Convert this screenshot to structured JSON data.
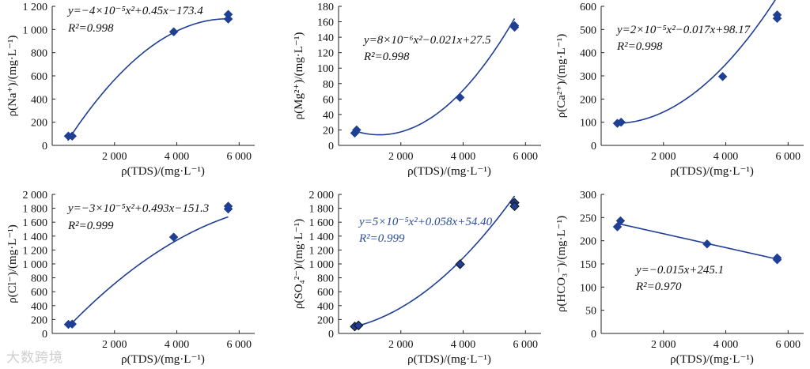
{
  "watermark": "大数跨境",
  "colors": {
    "series": "#1f3f94",
    "eq_blue": "#2b4f9a",
    "eq_black": "#111111"
  },
  "chart_data": [
    {
      "type": "scatter",
      "ylabel": "ρ(Na⁺)/(mg·L⁻¹)",
      "xlabel": "ρ(TDS)/(mg·L⁻¹)",
      "xlim": [
        0,
        6500
      ],
      "ylim": [
        0,
        1200
      ],
      "xticks": [
        2000,
        4000,
        6000
      ],
      "yticks": [
        0,
        200,
        400,
        600,
        800,
        1000,
        1200
      ],
      "xtick_labels": [
        "2 000",
        "4 000",
        "6 000"
      ],
      "ytick_labels": [
        "0",
        "200",
        "400",
        "600",
        "800",
        "1 000",
        "1 200"
      ],
      "points": [
        [
          520,
          80
        ],
        [
          640,
          80
        ],
        [
          3900,
          980
        ],
        [
          5650,
          1130
        ],
        [
          5650,
          1090
        ]
      ],
      "fit": {
        "kind": "quadratic",
        "a": -4e-05,
        "b": 0.45,
        "c": -173.4,
        "range": [
          500,
          5700
        ]
      },
      "equation": "y=−4×10⁻⁵x²+0.45x−173.4",
      "r2": "R²=0.998"
    },
    {
      "type": "scatter",
      "ylabel": "ρ(Mg²⁺)/(mg·L⁻¹)",
      "xlabel": "ρ(TDS)/(mg·L⁻¹)",
      "xlim": [
        0,
        6500
      ],
      "ylim": [
        0,
        180
      ],
      "xticks": [
        2000,
        4000,
        6000
      ],
      "yticks": [
        0,
        20,
        40,
        60,
        80,
        100,
        120,
        140,
        160,
        180
      ],
      "xtick_labels": [
        "2 000",
        "4 000",
        "6 000"
      ],
      "ytick_labels": [
        "0",
        "20",
        "40",
        "60",
        "80",
        "100",
        "120",
        "140",
        "160",
        "180"
      ],
      "points": [
        [
          520,
          16
        ],
        [
          580,
          20
        ],
        [
          3900,
          62
        ],
        [
          5650,
          155
        ],
        [
          5650,
          153
        ]
      ],
      "fit": {
        "kind": "quadratic",
        "a": 8e-06,
        "b": -0.021,
        "c": 27.5,
        "range": [
          500,
          5650
        ]
      },
      "equation": "y=8×10⁻⁶x²−0.021x+27.5",
      "r2": "R²=0.998"
    },
    {
      "type": "scatter",
      "ylabel": "ρ(Ca²⁺)/(mg·L⁻¹)",
      "xlabel": "ρ(TDS)/(mg·L⁻¹)",
      "xlim": [
        0,
        6500
      ],
      "ylim": [
        0,
        600
      ],
      "xticks": [
        2000,
        4000,
        6000
      ],
      "yticks": [
        0,
        100,
        200,
        300,
        400,
        500,
        600
      ],
      "xtick_labels": [
        "2 000",
        "4 000",
        "6 000"
      ],
      "ytick_labels": [
        "0",
        "100",
        "200",
        "300",
        "400",
        "500",
        "600"
      ],
      "points": [
        [
          520,
          95
        ],
        [
          640,
          100
        ],
        [
          3900,
          297
        ],
        [
          5650,
          563
        ],
        [
          5650,
          548
        ]
      ],
      "fit": {
        "kind": "quadratic",
        "a": 2e-05,
        "b": -0.017,
        "c": 98.17,
        "range": [
          500,
          5650
        ]
      },
      "equation": "y=2×10⁻⁵x²−0.017x+98.17",
      "r2": "R²=0.998"
    },
    {
      "type": "scatter",
      "ylabel": "ρ(Cl⁻)/(mg·L⁻¹)",
      "xlabel": "ρ(TDS)/(mg·L⁻¹)",
      "xlim": [
        0,
        6500
      ],
      "ylim": [
        0,
        2000
      ],
      "xticks": [
        2000,
        4000,
        6000
      ],
      "yticks": [
        0,
        200,
        400,
        600,
        800,
        1000,
        1200,
        1400,
        1600,
        1800,
        2000
      ],
      "xtick_labels": [
        "2 000",
        "4 000",
        "6 000"
      ],
      "ytick_labels": [
        "0",
        "200",
        "400",
        "600",
        "800",
        "1 000",
        "1 200",
        "1 400",
        "1 600",
        "1 800",
        "2 000"
      ],
      "points": [
        [
          520,
          130
        ],
        [
          640,
          135
        ],
        [
          3900,
          1385
        ],
        [
          5650,
          1830
        ],
        [
          5650,
          1790
        ]
      ],
      "fit": {
        "kind": "quadratic",
        "a": -3e-05,
        "b": 0.493,
        "c": -151.3,
        "range": [
          500,
          5650
        ]
      },
      "equation": "y=−3×10⁻⁵x²+0.493x−151.3",
      "r2": "R²=0.999"
    },
    {
      "type": "scatter",
      "ylabel": "ρ(SO₄²⁻)/(mg·L⁻¹)",
      "xlabel": "ρ(TDS)/(mg·L⁻¹)",
      "xlim": [
        0,
        6500
      ],
      "ylim": [
        0,
        2000
      ],
      "xticks": [
        2000,
        4000,
        6000
      ],
      "yticks": [
        0,
        200,
        400,
        600,
        800,
        1000,
        1200,
        1400,
        1600,
        1800,
        2000
      ],
      "xtick_labels": [
        "2 000",
        "4 000",
        "6 000"
      ],
      "ytick_labels": [
        "0",
        "200",
        "400",
        "600",
        "800",
        "1 000",
        "1 200",
        "1 400",
        "1 600",
        "1 800",
        "2 000"
      ],
      "points": [
        [
          520,
          100
        ],
        [
          640,
          115
        ],
        [
          3900,
          995
        ],
        [
          5650,
          1880
        ],
        [
          5650,
          1830
        ]
      ],
      "fit": {
        "kind": "quadratic",
        "a": 5e-05,
        "b": 0.058,
        "c": 54.4,
        "range": [
          500,
          5650
        ]
      },
      "equation": "y=5×10⁻⁵x²+0.058x+54.40",
      "r2": "R²=0.999",
      "equation_color": "blue"
    },
    {
      "type": "scatter",
      "ylabel": "ρ(HCO₃⁻)/(mg·L⁻¹)",
      "xlabel": "ρ(TDS)/(mg·L⁻¹)",
      "xlim": [
        0,
        6500
      ],
      "ylim": [
        0,
        300
      ],
      "xticks": [
        2000,
        4000,
        6000
      ],
      "yticks": [
        0,
        50,
        100,
        150,
        200,
        250,
        300
      ],
      "xtick_labels": [
        "2 000",
        "4 000",
        "6 000"
      ],
      "ytick_labels": [
        "0",
        "50",
        "100",
        "150",
        "200",
        "250",
        "300"
      ],
      "points": [
        [
          520,
          230
        ],
        [
          620,
          243
        ],
        [
          3400,
          193
        ],
        [
          5650,
          163
        ],
        [
          5650,
          159
        ]
      ],
      "fit": {
        "kind": "linear",
        "a": 0,
        "b": -0.015,
        "c": 245.1,
        "range": [
          500,
          5650
        ]
      },
      "equation": "y=−0.015x+245.1",
      "r2": "R²=0.970"
    }
  ]
}
